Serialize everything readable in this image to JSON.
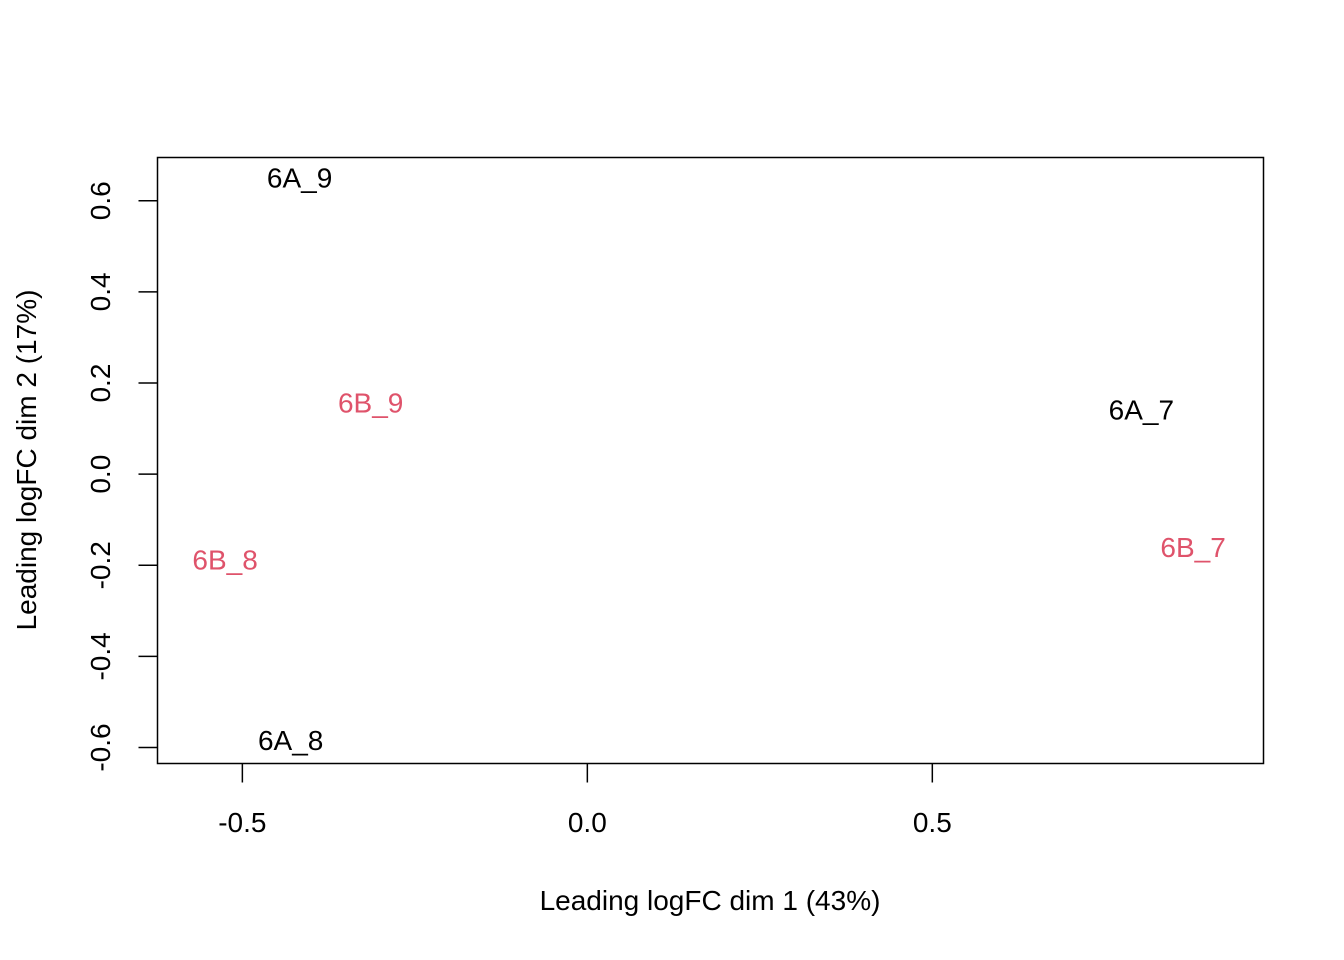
{
  "chart_data": {
    "type": "scatter",
    "xlabel": "Leading logFC dim 1 (43%)",
    "ylabel": "Leading logFC dim 2 (17%)",
    "xlim": [
      -0.623,
      0.98
    ],
    "ylim": [
      -0.635,
      0.695
    ],
    "xticks": [
      -0.5,
      0.0,
      0.5
    ],
    "xtick_labels": [
      "-0.5",
      "0.0",
      "0.5"
    ],
    "yticks": [
      -0.6,
      -0.4,
      -0.2,
      0.0,
      0.2,
      0.4,
      0.6
    ],
    "ytick_labels": [
      "-0.6",
      "-0.4",
      "-0.2",
      "0.0",
      "0.2",
      "0.4",
      "0.6"
    ],
    "grid": false,
    "point_labels": true,
    "colors": {
      "6A": "#000000",
      "6B": "#DF536B"
    },
    "points": [
      {
        "label": "6A_9",
        "x": -0.417,
        "y": 0.651,
        "group": "6A"
      },
      {
        "label": "6B_9",
        "x": -0.314,
        "y": 0.157,
        "group": "6B"
      },
      {
        "label": "6A_7",
        "x": 0.803,
        "y": 0.142,
        "group": "6A"
      },
      {
        "label": "6B_8",
        "x": -0.525,
        "y": -0.187,
        "group": "6B"
      },
      {
        "label": "6B_7",
        "x": 0.878,
        "y": -0.16,
        "group": "6B"
      },
      {
        "label": "6A_8",
        "x": -0.43,
        "y": -0.583,
        "group": "6A"
      }
    ]
  }
}
